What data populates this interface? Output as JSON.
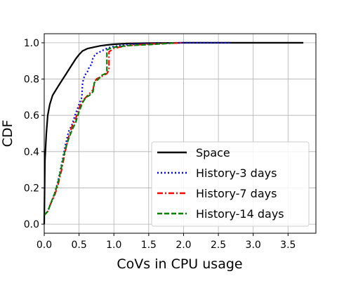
{
  "chart_data": {
    "type": "line",
    "title": "",
    "xlabel": "CoVs in CPU usage",
    "ylabel": "CDF",
    "xlim": [
      0,
      3.9
    ],
    "ylim": [
      -0.05,
      1.05
    ],
    "grid": true,
    "legend_position": "lower-right",
    "x_ticks": [
      "0.0",
      "0.5",
      "1.0",
      "1.5",
      "2.0",
      "2.5",
      "3.0",
      "3.5"
    ],
    "y_ticks": [
      "0.0",
      "0.2",
      "0.4",
      "0.6",
      "0.8",
      "1.0"
    ],
    "series": [
      {
        "name": "Space",
        "color": "#000000",
        "style": "solid",
        "points": [
          [
            0,
            0.0
          ],
          [
            0.01,
            0.35
          ],
          [
            0.03,
            0.5
          ],
          [
            0.05,
            0.6
          ],
          [
            0.08,
            0.66
          ],
          [
            0.12,
            0.71
          ],
          [
            0.2,
            0.76
          ],
          [
            0.3,
            0.82
          ],
          [
            0.4,
            0.88
          ],
          [
            0.45,
            0.91
          ],
          [
            0.5,
            0.935
          ],
          [
            0.55,
            0.955
          ],
          [
            0.62,
            0.968
          ],
          [
            0.7,
            0.975
          ],
          [
            0.8,
            0.983
          ],
          [
            0.9,
            0.988
          ],
          [
            1.0,
            0.992
          ],
          [
            1.2,
            0.996
          ],
          [
            1.5,
            0.998
          ],
          [
            2.0,
            1.0
          ],
          [
            2.5,
            1.0
          ],
          [
            3.0,
            1.0
          ],
          [
            3.5,
            1.0
          ],
          [
            3.72,
            1.0
          ]
        ]
      },
      {
        "name": "History-3 days",
        "color": "#0000ff",
        "style": "dotted",
        "points": [
          [
            0.0,
            0.05
          ],
          [
            0.05,
            0.07
          ],
          [
            0.1,
            0.12
          ],
          [
            0.15,
            0.17
          ],
          [
            0.2,
            0.24
          ],
          [
            0.25,
            0.33
          ],
          [
            0.3,
            0.43
          ],
          [
            0.35,
            0.51
          ],
          [
            0.4,
            0.55
          ],
          [
            0.45,
            0.61
          ],
          [
            0.5,
            0.66
          ],
          [
            0.54,
            0.7
          ],
          [
            0.55,
            0.78
          ],
          [
            0.58,
            0.82
          ],
          [
            0.62,
            0.84
          ],
          [
            0.65,
            0.87
          ],
          [
            0.68,
            0.88
          ],
          [
            0.7,
            0.92
          ],
          [
            0.75,
            0.94
          ],
          [
            0.8,
            0.95
          ],
          [
            0.85,
            0.96
          ],
          [
            0.9,
            0.97
          ],
          [
            0.95,
            0.975
          ],
          [
            1.0,
            0.98
          ],
          [
            1.2,
            0.99
          ],
          [
            1.5,
            0.996
          ],
          [
            2.0,
            1.0
          ],
          [
            2.5,
            1.0
          ],
          [
            2.68,
            1.0
          ]
        ]
      },
      {
        "name": "History-7 days",
        "color": "#ff0000",
        "style": "dashdot",
        "points": [
          [
            0.0,
            0.05
          ],
          [
            0.05,
            0.07
          ],
          [
            0.1,
            0.12
          ],
          [
            0.15,
            0.16
          ],
          [
            0.2,
            0.22
          ],
          [
            0.25,
            0.3
          ],
          [
            0.3,
            0.4
          ],
          [
            0.35,
            0.48
          ],
          [
            0.4,
            0.54
          ],
          [
            0.45,
            0.58
          ],
          [
            0.5,
            0.64
          ],
          [
            0.55,
            0.68
          ],
          [
            0.6,
            0.7
          ],
          [
            0.65,
            0.72
          ],
          [
            0.7,
            0.74
          ],
          [
            0.72,
            0.78
          ],
          [
            0.75,
            0.8
          ],
          [
            0.8,
            0.81
          ],
          [
            0.85,
            0.82
          ],
          [
            0.9,
            0.83
          ],
          [
            0.93,
            0.85
          ],
          [
            0.93,
            0.95
          ],
          [
            1.0,
            0.97
          ],
          [
            1.2,
            0.985
          ],
          [
            1.5,
            0.993
          ],
          [
            2.0,
            1.0
          ]
        ]
      },
      {
        "name": "History-14 days",
        "color": "#008000",
        "style": "dashed",
        "points": [
          [
            0.0,
            0.05
          ],
          [
            0.05,
            0.07
          ],
          [
            0.1,
            0.12
          ],
          [
            0.15,
            0.17
          ],
          [
            0.2,
            0.23
          ],
          [
            0.25,
            0.32
          ],
          [
            0.3,
            0.41
          ],
          [
            0.35,
            0.47
          ],
          [
            0.4,
            0.52
          ],
          [
            0.45,
            0.56
          ],
          [
            0.5,
            0.62
          ],
          [
            0.55,
            0.67
          ],
          [
            0.6,
            0.7
          ],
          [
            0.65,
            0.71
          ],
          [
            0.7,
            0.73
          ],
          [
            0.72,
            0.78
          ],
          [
            0.78,
            0.8
          ],
          [
            0.82,
            0.82
          ],
          [
            0.88,
            0.83
          ],
          [
            0.9,
            0.84
          ],
          [
            0.9,
            0.96
          ],
          [
            0.95,
            0.97
          ],
          [
            1.0,
            0.975
          ],
          [
            1.2,
            0.985
          ],
          [
            1.5,
            0.99
          ],
          [
            1.8,
            0.997
          ],
          [
            1.9,
            1.0
          ]
        ]
      }
    ]
  }
}
